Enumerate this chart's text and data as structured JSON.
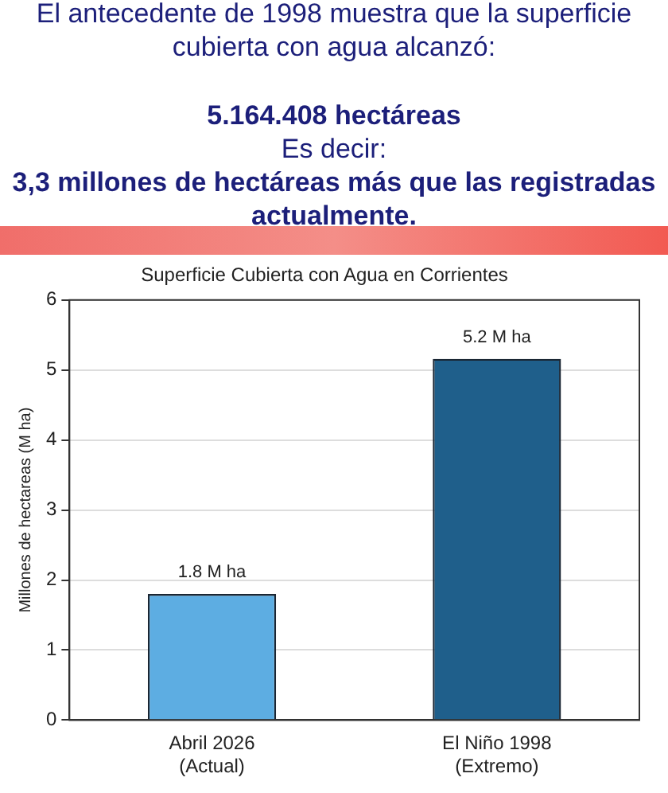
{
  "chart_data": {
    "type": "bar",
    "title": "Superficie Cubierta con Agua en Corrientes",
    "ylabel": "Millones de hectareas (M ha)",
    "categories": [
      "Abril 2026\n(Actual)",
      "El Niño 1998\n(Extremo)"
    ],
    "values": [
      1.8,
      5.16
    ],
    "colors": [
      "#5dade2",
      "#1f5f8b"
    ],
    "value_labels": [
      "1.8 M ha",
      "5.2 M ha"
    ],
    "ylim": [
      0,
      6
    ],
    "yticks": [
      0,
      1,
      2,
      3,
      4,
      5,
      6
    ],
    "grid": "y",
    "legend": false,
    "annotations": [
      "El antecedente de 1998 muestra que la superficie cubierta con agua alcanzó:",
      "5.164.408 hectáreas",
      "Es decir:",
      "3,3 millones de hectáreas más que las registradas actualmente."
    ]
  }
}
